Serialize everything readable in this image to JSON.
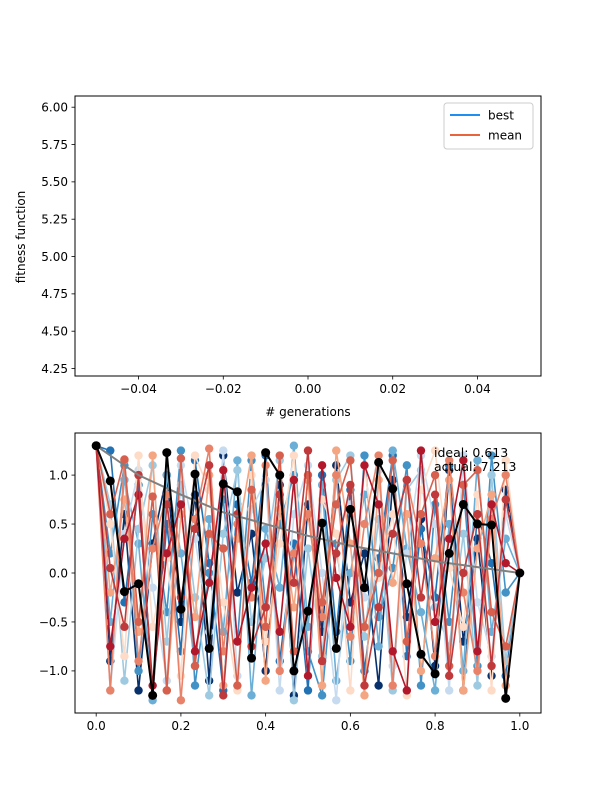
{
  "chart_data": [
    {
      "type": "line",
      "title": "",
      "xlabel": "# generations",
      "ylabel": "fitness function",
      "xlim": [
        -0.055,
        0.055
      ],
      "ylim": [
        4.2,
        6.075
      ],
      "x_ticks": [
        -0.04,
        -0.02,
        0.0,
        0.02,
        0.04
      ],
      "x_tick_labels": [
        "−0.04",
        "−0.02",
        "0.00",
        "0.02",
        "0.04"
      ],
      "y_ticks": [
        4.25,
        4.5,
        4.75,
        5.0,
        5.25,
        5.5,
        5.75,
        6.0
      ],
      "y_tick_labels": [
        "4.25",
        "4.50",
        "4.75",
        "5.00",
        "5.25",
        "5.50",
        "5.75",
        "6.00"
      ],
      "legend_position": "top-right",
      "series": [
        {
          "name": "best",
          "color": "#1f8ef1",
          "x": [],
          "y": []
        },
        {
          "name": "mean",
          "color": "#e8643c",
          "x": [],
          "y": []
        }
      ]
    },
    {
      "type": "line",
      "title": "",
      "xlabel": "",
      "ylabel": "",
      "xlim": [
        -0.05,
        1.05
      ],
      "ylim": [
        -1.43,
        1.43
      ],
      "x_ticks": [
        0.0,
        0.2,
        0.4,
        0.6,
        0.8,
        1.0
      ],
      "x_tick_labels": [
        "0.0",
        "0.2",
        "0.4",
        "0.6",
        "0.8",
        "1.0"
      ],
      "y_ticks": [
        -1.0,
        -0.5,
        0.0,
        0.5,
        1.0
      ],
      "y_tick_labels": [
        "−1.0",
        "−0.5",
        "0.0",
        "0.5",
        "1.0"
      ],
      "annotations": [
        "ideal: 0.613",
        "actual: 7.213"
      ],
      "ideal_curve": {
        "color": "#808080",
        "x": [
          0.0,
          0.1,
          0.2,
          0.3,
          0.4,
          0.5,
          0.6,
          0.7,
          0.8,
          0.9,
          1.0
        ],
        "y": [
          1.3,
          1.0,
          0.8,
          0.62,
          0.5,
          0.38,
          0.28,
          0.2,
          0.12,
          0.06,
          0.0
        ]
      },
      "best_path": {
        "color": "#000000",
        "x": [
          0.0,
          0.0333,
          0.0667,
          0.1,
          0.1333,
          0.1667,
          0.2,
          0.2333,
          0.2667,
          0.3,
          0.3333,
          0.3667,
          0.4,
          0.4333,
          0.4667,
          0.5,
          0.5333,
          0.5667,
          0.6,
          0.6333,
          0.6667,
          0.7,
          0.7333,
          0.7667,
          0.8,
          0.8333,
          0.8667,
          0.9,
          0.9333,
          0.9667,
          1.0
        ],
        "y": [
          1.3,
          0.94,
          -0.19,
          -0.11,
          -1.25,
          1.23,
          -0.37,
          1.01,
          -0.77,
          0.91,
          0.83,
          -0.87,
          1.23,
          1.0,
          -1.0,
          -0.39,
          0.51,
          -0.77,
          0.65,
          -0.15,
          1.13,
          0.86,
          -0.11,
          -0.83,
          -1.03,
          0.2,
          0.7,
          0.5,
          0.49,
          -1.28,
          0.0
        ]
      },
      "population_paths": [
        {
          "color": "#08306b",
          "x": [
            0.0,
            0.0333,
            0.0667,
            0.1,
            0.1333,
            0.1667,
            0.2,
            0.2333,
            0.2667,
            0.3,
            0.3333,
            0.3667,
            0.4,
            0.4333,
            0.4667,
            0.5,
            0.5333,
            0.5667,
            0.6,
            0.6333,
            0.6667,
            0.7,
            0.7333,
            0.7667,
            0.8,
            0.8333,
            0.8667,
            0.9,
            0.9333,
            0.9667,
            1.0
          ],
          "y": [
            1.3,
            -0.9,
            0.6,
            -1.2,
            0.3,
            1.0,
            -0.5,
            0.8,
            -1.1,
            1.2,
            -0.2,
            0.4,
            -1.0,
            0.9,
            -1.25,
            0.7,
            -0.6,
            1.1,
            -0.3,
            0.2,
            -1.15,
            0.95,
            -0.45,
            0.55,
            -0.95,
            1.05,
            -0.7,
            0.35,
            -1.05,
            0.85,
            0.0
          ]
        },
        {
          "color": "#2171b5",
          "x": [
            0.0,
            0.0333,
            0.0667,
            0.1,
            0.1333,
            0.1667,
            0.2,
            0.2333,
            0.2667,
            0.3,
            0.3333,
            0.3667,
            0.4,
            0.4333,
            0.4667,
            0.5,
            0.5333,
            0.5667,
            0.6,
            0.6333,
            0.6667,
            0.7,
            0.7333,
            0.7667,
            0.8,
            0.8333,
            0.8667,
            0.9,
            0.9333,
            0.9667,
            1.0
          ],
          "y": [
            1.3,
            1.25,
            -0.3,
            0.9,
            -1.25,
            0.5,
            -0.8,
            1.15,
            0.1,
            -1.2,
            0.7,
            -0.1,
            1.2,
            -0.9,
            0.3,
            -1.2,
            1.0,
            -0.6,
            0.85,
            -1.0,
            0.15,
            1.2,
            -0.85,
            0.45,
            -0.25,
            1.1,
            -1.2,
            0.6,
            0.1,
            -1.05,
            0.0
          ]
        },
        {
          "color": "#4292c6",
          "x": [
            0.0,
            0.0333,
            0.0667,
            0.1,
            0.1333,
            0.1667,
            0.2,
            0.2333,
            0.2667,
            0.3,
            0.3333,
            0.3667,
            0.4,
            0.4333,
            0.4667,
            0.5,
            0.5333,
            0.5667,
            0.6,
            0.6333,
            0.6667,
            0.7,
            0.7333,
            0.7667,
            0.8,
            0.8333,
            0.8667,
            0.9,
            0.9333,
            0.9667,
            1.0
          ],
          "y": [
            1.3,
            0.2,
            1.1,
            -1.0,
            0.6,
            -0.4,
            1.25,
            -1.15,
            0.0,
            0.75,
            -0.7,
            1.15,
            -0.35,
            0.5,
            1.0,
            -0.8,
            -1.25,
            0.3,
            -0.9,
            1.2,
            -0.45,
            0.05,
            1.1,
            -1.15,
            0.7,
            -0.5,
            0.9,
            -0.95,
            1.2,
            -0.2,
            0.0
          ]
        },
        {
          "color": "#6baed6",
          "x": [
            0.0,
            0.0333,
            0.0667,
            0.1,
            0.1333,
            0.1667,
            0.2,
            0.2333,
            0.2667,
            0.3,
            0.3333,
            0.3667,
            0.4,
            0.4333,
            0.4667,
            0.5,
            0.5333,
            0.5667,
            0.6,
            0.6333,
            0.6667,
            0.7,
            0.7333,
            0.7667,
            0.8,
            0.8333,
            0.8667,
            0.9,
            0.9333,
            0.9667,
            1.0
          ],
          "y": [
            1.3,
            -0.5,
            0.95,
            0.3,
            -1.3,
            1.0,
            0.2,
            -0.95,
            0.55,
            -0.6,
            1.15,
            -1.25,
            0.45,
            -0.15,
            1.3,
            -0.55,
            0.9,
            -1.1,
            0.0,
            0.8,
            -0.75,
            1.25,
            0.25,
            -0.4,
            -1.2,
            0.5,
            -1.0,
            1.15,
            -0.6,
            0.35,
            0.0
          ]
        },
        {
          "color": "#9ecae1",
          "x": [
            0.0,
            0.0333,
            0.0667,
            0.1,
            0.1333,
            0.1667,
            0.2,
            0.2333,
            0.2667,
            0.3,
            0.3333,
            0.3667,
            0.4,
            0.4333,
            0.4667,
            0.5,
            0.5333,
            0.5667,
            0.6,
            0.6333,
            0.6667,
            0.7,
            0.7333,
            0.7667,
            0.8,
            0.8333,
            0.8667,
            0.9,
            0.9333,
            0.9667,
            1.0
          ],
          "y": [
            1.3,
            0.7,
            -1.1,
            0.45,
            1.1,
            -0.7,
            0.9,
            -0.25,
            -1.25,
            0.4,
            1.05,
            -0.5,
            0.15,
            1.15,
            -1.3,
            0.25,
            -0.85,
            0.95,
            1.2,
            -0.65,
            0.55,
            -1.2,
            0.85,
            1.05,
            -0.35,
            -0.75,
            0.4,
            -1.15,
            1.0,
            -0.9,
            0.0
          ]
        },
        {
          "color": "#c6dbef",
          "x": [
            0.0,
            0.0333,
            0.0667,
            0.1,
            0.1333,
            0.1667,
            0.2,
            0.2333,
            0.2667,
            0.3,
            0.3333,
            0.3667,
            0.4,
            0.4333,
            0.4667,
            0.5,
            0.5333,
            0.5667,
            0.6,
            0.6333,
            0.6667,
            0.7,
            0.7333,
            0.7667,
            0.8,
            0.8333,
            0.8667,
            0.9,
            0.9333,
            0.9667,
            1.0
          ],
          "y": [
            1.3,
            -1.2,
            0.4,
            1.05,
            -0.15,
            -1.1,
            1.1,
            0.35,
            -0.6,
            1.25,
            -1.05,
            0.65,
            0.95,
            -1.2,
            0.6,
            1.1,
            0.0,
            -1.3,
            0.7,
            -0.25,
            1.05,
            -0.95,
            0.2,
            1.2,
            0.5,
            -1.2,
            1.2,
            -0.3,
            -0.85,
            0.6,
            0.0
          ]
        },
        {
          "color": "#fddbc7",
          "x": [
            0.0,
            0.0333,
            0.0667,
            0.1,
            0.1333,
            0.1667,
            0.2,
            0.2333,
            0.2667,
            0.3,
            0.3333,
            0.3667,
            0.4,
            0.4333,
            0.4667,
            0.5,
            0.5333,
            0.5667,
            0.6,
            0.6333,
            0.6667,
            0.7,
            0.7333,
            0.7667,
            0.8,
            0.8333,
            0.8667,
            0.9,
            0.9333,
            0.9667,
            1.0
          ],
          "y": [
            1.3,
            0.5,
            -0.85,
            1.2,
            -0.55,
            0.15,
            -1.05,
            1.2,
            0.85,
            -0.3,
            -1.2,
            1.0,
            -0.7,
            0.3,
            1.2,
            -1.05,
            0.75,
            0.4,
            -1.2,
            1.1,
            -0.05,
            0.6,
            -1.25,
            0.85,
            1.25,
            0.05,
            -0.55,
            0.8,
            -1.2,
            1.15,
            0.0
          ]
        },
        {
          "color": "#f4a582",
          "x": [
            0.0,
            0.0333,
            0.0667,
            0.1,
            0.1333,
            0.1667,
            0.2,
            0.2333,
            0.2667,
            0.3,
            0.3333,
            0.3667,
            0.4,
            0.4333,
            0.4667,
            0.5,
            0.5333,
            0.5667,
            0.6,
            0.6333,
            0.6667,
            0.7,
            0.7333,
            0.7667,
            0.8,
            0.8333,
            0.8667,
            0.9,
            0.9333,
            0.9667,
            1.0
          ],
          "y": [
            1.3,
            -0.2,
            0.75,
            -0.6,
            1.2,
            -1.2,
            0.6,
            -0.45,
            1.0,
            -1.15,
            0.35,
            1.2,
            -1.1,
            0.65,
            -0.35,
            0.95,
            -1.15,
            1.25,
            0.3,
            -1.25,
            0.95,
            -0.1,
            0.6,
            -1.0,
            0.15,
            0.95,
            -1.2,
            0.25,
            0.8,
            -1.15,
            0.0
          ]
        },
        {
          "color": "#e8836a",
          "x": [
            0.0,
            0.0333,
            0.0667,
            0.1,
            0.1333,
            0.1667,
            0.2,
            0.2333,
            0.2667,
            0.3,
            0.3333,
            0.3667,
            0.4,
            0.4333,
            0.4667,
            0.5,
            0.5333,
            0.5667,
            0.6,
            0.6333,
            0.6667,
            0.7,
            0.7333,
            0.7667,
            0.8,
            0.8333,
            0.8667,
            0.9,
            0.9333,
            0.9667,
            1.0
          ],
          "y": [
            1.3,
            -1.2,
            1.15,
            -0.9,
            0.25,
            0.8,
            -1.3,
            0.55,
            1.27,
            -0.8,
            0.5,
            -0.25,
            1.1,
            -1.0,
            0.2,
            0.6,
            -0.45,
            1.0,
            -0.65,
            0.5,
            1.2,
            -1.15,
            0.95,
            0.3,
            -0.85,
            1.15,
            -0.2,
            -1.0,
            0.55,
            1.0,
            0.0
          ]
        },
        {
          "color": "#d6604d",
          "x": [
            0.0,
            0.0333,
            0.0667,
            0.1,
            0.1333,
            0.1667,
            0.2,
            0.2333,
            0.2667,
            0.3,
            0.3333,
            0.3667,
            0.4,
            0.4333,
            0.4667,
            0.5,
            0.5333,
            0.5667,
            0.6,
            0.6333,
            0.6667,
            0.7,
            0.7333,
            0.7667,
            0.8,
            0.8333,
            0.8667,
            0.9,
            0.9333,
            0.9667,
            1.0
          ],
          "y": [
            1.3,
            0.6,
            1.16,
            -0.5,
            0.78,
            -1.2,
            1.17,
            -0.95,
            0.4,
            0.25,
            -1.15,
            0.85,
            -0.55,
            1.2,
            -0.8,
            1.0,
            -0.3,
            0.7,
            1.15,
            -0.55,
            0.0,
            1.15,
            -0.7,
            0.6,
            1.0,
            -0.95,
            0.9,
            1.05,
            -0.4,
            -0.75,
            0.0
          ]
        },
        {
          "color": "#b2182b",
          "x": [
            0.0,
            0.0333,
            0.0667,
            0.1,
            0.1333,
            0.1667,
            0.2,
            0.2333,
            0.2667,
            0.3,
            0.3333,
            0.3667,
            0.4,
            0.4333,
            0.4667,
            0.5,
            0.5333,
            0.5667,
            0.6,
            0.6333,
            0.6667,
            0.7,
            0.7333,
            0.7667,
            0.8,
            0.8333,
            0.8667,
            0.9,
            0.9333,
            0.9667,
            1.0
          ],
          "y": [
            1.3,
            -0.75,
            0.35,
            0.8,
            -1.15,
            0.2,
            0.7,
            -0.8,
            -0.1,
            1.05,
            -0.7,
            -0.15,
            0.3,
            -0.6,
            0.95,
            -1.05,
            1.1,
            -0.05,
            -0.55,
            1.1,
            0.7,
            -0.8,
            -1.2,
            1.25,
            -0.5,
            0.35,
            1.15,
            -0.8,
            0.7,
            0.1,
            0.0
          ]
        },
        {
          "color": "#c0393b",
          "x": [
            0.0,
            0.0333,
            0.0667,
            0.1,
            0.1333,
            0.1667,
            0.2,
            0.2333,
            0.2667,
            0.3,
            0.3333,
            0.3667,
            0.4,
            0.4333,
            0.4667,
            0.5,
            0.5333,
            0.5667,
            0.6,
            0.6333,
            0.6667,
            0.7,
            0.7333,
            0.7667,
            0.8,
            0.8333,
            0.8667,
            0.9,
            0.9333,
            0.9667,
            1.0
          ],
          "y": [
            1.3,
            0.05,
            -0.55,
            1.0,
            -1.25,
            0.7,
            -0.25,
            0.45,
            1.1,
            -1.25,
            0.6,
            -0.75,
            -0.35,
            0.8,
            -0.1,
            1.25,
            -0.9,
            0.2,
            0.9,
            -1.15,
            -0.35,
            0.4,
            0.95,
            -0.25,
            0.8,
            -1.05,
            0.0,
            0.6,
            -0.95,
            0.75,
            0.0
          ]
        }
      ]
    }
  ]
}
